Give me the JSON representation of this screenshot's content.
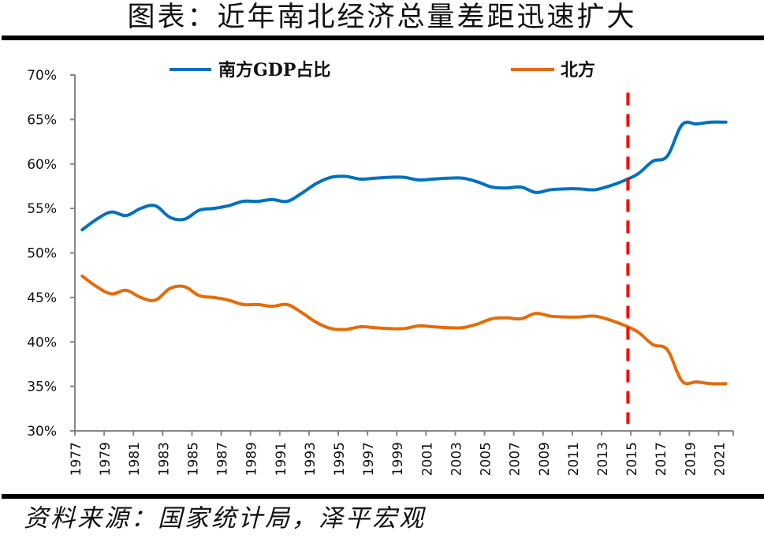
{
  "header": {
    "title": "图表：近年南北经济总量差距迅速扩大"
  },
  "footer": {
    "source": "资料来源：国家统计局，泽平宏观"
  },
  "colors": {
    "south": "#0070C0",
    "north": "#E46C0A",
    "marker": "#FF0000",
    "axis": "#868686"
  },
  "chart_data": {
    "type": "line",
    "title": "近年南北经济总量差距迅速扩大",
    "xlabel": "",
    "ylabel": "",
    "ylim": [
      30,
      70
    ],
    "y_unit": "%",
    "y_ticks": [
      "70%",
      "65%",
      "60%",
      "55%",
      "50%",
      "45%",
      "40%",
      "35%",
      "30%"
    ],
    "y_tick_values": [
      70,
      65,
      60,
      55,
      50,
      45,
      40,
      35,
      30
    ],
    "x": [
      1977,
      1978,
      1979,
      1980,
      1981,
      1982,
      1983,
      1984,
      1985,
      1986,
      1987,
      1988,
      1989,
      1990,
      1991,
      1992,
      1993,
      1994,
      1995,
      1996,
      1997,
      1998,
      1999,
      2000,
      2001,
      2002,
      2003,
      2004,
      2005,
      2006,
      2007,
      2008,
      2009,
      2010,
      2011,
      2012,
      2013,
      2014,
      2015,
      2016,
      2017,
      2018,
      2019,
      2020,
      2021
    ],
    "x_tick_labels": [
      "1977",
      "1979",
      "1981",
      "1983",
      "1985",
      "1987",
      "1989",
      "1991",
      "1993",
      "1995",
      "1997",
      "1999",
      "2001",
      "2003",
      "2005",
      "2007",
      "2009",
      "2011",
      "2013",
      "2015",
      "2017",
      "2019",
      "2021"
    ],
    "grid": false,
    "legend_position": "top",
    "series": [
      {
        "name": "南方GDP占比",
        "key": "south",
        "values": [
          52.6,
          53.8,
          54.6,
          54.2,
          55.0,
          55.3,
          54.0,
          53.8,
          54.8,
          55.0,
          55.3,
          55.8,
          55.8,
          56.0,
          55.8,
          56.7,
          57.8,
          58.5,
          58.6,
          58.3,
          58.4,
          58.5,
          58.5,
          58.2,
          58.3,
          58.4,
          58.4,
          58.0,
          57.4,
          57.3,
          57.4,
          56.8,
          57.1,
          57.2,
          57.2,
          57.1,
          57.5,
          58.1,
          58.9,
          60.3,
          60.9,
          64.4,
          64.5,
          64.7,
          64.7
        ]
      },
      {
        "name": "北方",
        "key": "north",
        "values": [
          47.4,
          46.2,
          45.4,
          45.8,
          45.0,
          44.7,
          46.0,
          46.2,
          45.2,
          45.0,
          44.7,
          44.2,
          44.2,
          44.0,
          44.2,
          43.3,
          42.2,
          41.5,
          41.4,
          41.7,
          41.6,
          41.5,
          41.5,
          41.8,
          41.7,
          41.6,
          41.6,
          42.0,
          42.6,
          42.7,
          42.6,
          43.2,
          42.9,
          42.8,
          42.8,
          42.9,
          42.5,
          41.9,
          41.1,
          39.7,
          39.1,
          35.6,
          35.5,
          35.3,
          35.3
        ]
      }
    ],
    "annotations": [
      {
        "type": "vertical-dashed-line",
        "x": 2014.3,
        "y_from": 30.8,
        "y_to": 68.0,
        "color": "#FF0000"
      }
    ]
  }
}
